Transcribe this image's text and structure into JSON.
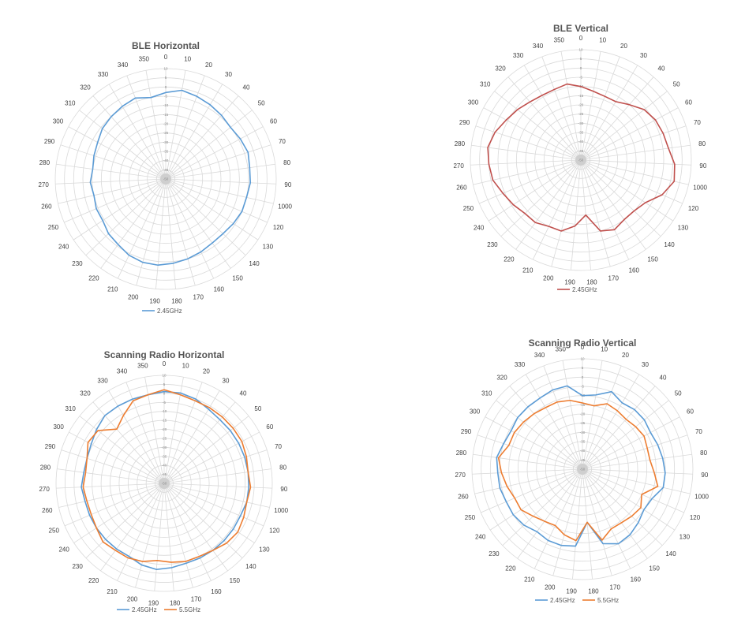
{
  "chart_data": [
    {
      "type": "radar",
      "title": "BLE Horizontal",
      "angle_labels": [
        "0",
        "10",
        "20",
        "30",
        "40",
        "50",
        "60",
        "70",
        "80",
        "90",
        "1000",
        "120",
        "130",
        "140",
        "150",
        "160",
        "170",
        "180",
        "190",
        "200",
        "210",
        "220",
        "230",
        "240",
        "250",
        "260",
        "270",
        "280",
        "290",
        "300",
        "310",
        "320",
        "330",
        "340",
        "350"
      ],
      "radial_labels": [
        "10",
        "5",
        "0",
        "-5",
        "-10",
        "-15",
        "-20",
        "-25",
        "-30",
        "-35",
        "-40",
        "-45",
        "-50"
      ],
      "rlim": [
        -50,
        10
      ],
      "grid": true,
      "legend_position": "bottom",
      "series": [
        {
          "name": "2.45GHz",
          "color": "#5b9bd5",
          "values": [
            -3,
            -1,
            -2,
            -3,
            -4,
            -5,
            -4,
            -3,
            -4,
            -4,
            -5,
            -5,
            -6,
            -7,
            -7,
            -6,
            -5,
            -4,
            -3,
            -3,
            -4,
            -6,
            -7,
            -9,
            -9,
            -10,
            -9,
            -10,
            -9,
            -8,
            -6,
            -5,
            -4,
            -3,
            -5
          ]
        }
      ]
    },
    {
      "type": "radar",
      "title": "BLE Vertical",
      "angle_labels": [
        "0",
        "10",
        "20",
        "30",
        "40",
        "50",
        "60",
        "70",
        "80",
        "90",
        "1000",
        "120",
        "130",
        "140",
        "150",
        "160",
        "170",
        "180",
        "190",
        "200",
        "210",
        "220",
        "230",
        "240",
        "250",
        "260",
        "270",
        "280",
        "290",
        "300",
        "310",
        "320",
        "330",
        "340",
        "350"
      ],
      "radial_labels": [
        "10",
        "5",
        "0",
        "-5",
        "-10",
        "-15",
        "-20",
        "-25",
        "-30",
        "-35",
        "-40",
        "-45",
        "-50"
      ],
      "rlim": [
        -50,
        10
      ],
      "grid": true,
      "legend_position": "bottom",
      "series": [
        {
          "name": "2.45GHz",
          "color": "#c0504d",
          "values": [
            -10,
            -12,
            -13,
            -13,
            -10,
            -6,
            -4,
            -3,
            -2,
            1,
            2,
            -2,
            -8,
            -10,
            -10,
            -8,
            -10,
            -20,
            -14,
            -10,
            -10,
            -8,
            -8,
            -6,
            -4,
            -1,
            0,
            1,
            -1,
            -4,
            -6,
            -8,
            -9,
            -9,
            -8
          ]
        }
      ]
    },
    {
      "type": "radar",
      "title": "Scanning Radio Horizontal",
      "angle_labels": [
        "0",
        "10",
        "20",
        "30",
        "40",
        "50",
        "60",
        "70",
        "80",
        "90",
        "1000",
        "120",
        "130",
        "140",
        "150",
        "160",
        "170",
        "180",
        "190",
        "200",
        "210",
        "220",
        "230",
        "240",
        "250",
        "260",
        "270",
        "280",
        "290",
        "300",
        "310",
        "320",
        "330",
        "340",
        "350"
      ],
      "radial_labels": [
        "10",
        "5",
        "0",
        "-5",
        "-10",
        "-15",
        "-20",
        "-25",
        "-30",
        "-35",
        "-40",
        "-45",
        "-50"
      ],
      "rlim": [
        -50,
        10
      ],
      "grid": true,
      "legend_position": "bottom",
      "series": [
        {
          "name": "2.45GHz",
          "color": "#5b9bd5",
          "values": [
            1,
            1,
            0,
            -2,
            -3,
            -3,
            -3,
            -3,
            -3,
            -3,
            -3,
            -4,
            -4,
            -4,
            -4,
            -4,
            -4,
            -3,
            -2,
            -3,
            -5,
            -5,
            -5,
            -5,
            -5,
            -5,
            -4,
            -5,
            -5,
            -4,
            -2,
            0,
            0,
            0,
            0
          ]
        },
        {
          "name": "5.5GHz",
          "color": "#ed7d31",
          "values": [
            2,
            0,
            -1,
            -1,
            -1,
            -1,
            -1,
            -2,
            -3,
            -2,
            -3,
            -2,
            -1,
            -2,
            -4,
            -5,
            -5,
            -6,
            -7,
            -5,
            -4,
            -4,
            -3,
            -5,
            -6,
            -6,
            -5,
            -6,
            -5,
            -2,
            -3,
            -10,
            -6,
            -1,
            0
          ]
        }
      ]
    },
    {
      "type": "radar",
      "title": "Scanning Radio Vertical",
      "angle_labels": [
        "0",
        "10",
        "20",
        "30",
        "40",
        "50",
        "60",
        "70",
        "80",
        "90",
        "1000",
        "120",
        "130",
        "140",
        "150",
        "160",
        "170",
        "180",
        "190",
        "200",
        "210",
        "220",
        "230",
        "240",
        "250",
        "260",
        "270",
        "280",
        "290",
        "300",
        "310",
        "320",
        "330",
        "340",
        "350"
      ],
      "radial_labels": [
        "10",
        "5",
        "0",
        "-5",
        "-10",
        "-15",
        "-20",
        "-25",
        "-30",
        "-35",
        "-40",
        "-45",
        "-50"
      ],
      "rlim": [
        -50,
        10
      ],
      "grid": true,
      "legend_position": "bottom",
      "series": [
        {
          "name": "2.45GHz",
          "color": "#5b9bd5",
          "values": [
            -10,
            -9,
            -5,
            -8,
            -7,
            -7,
            -8,
            -7,
            -6,
            -5,
            -5,
            -9,
            -10,
            -8,
            -6,
            -5,
            -8,
            -21,
            -8,
            -7,
            -7,
            -8,
            -6,
            -5,
            -5,
            -4,
            -4,
            -3,
            -5,
            -6,
            -5,
            -5,
            -5,
            -4,
            -4
          ]
        },
        {
          "name": "5.5GHz",
          "color": "#ed7d31",
          "values": [
            -14,
            -15,
            -12,
            -13,
            -14,
            -13,
            -12,
            -13,
            -13,
            -11,
            -8,
            -15,
            -12,
            -13,
            -14,
            -14,
            -10,
            -21,
            -11,
            -13,
            -16,
            -15,
            -13,
            -10,
            -10,
            -8,
            -6,
            -4,
            -8,
            -8,
            -9,
            -10,
            -11,
            -11,
            -12
          ]
        }
      ]
    }
  ]
}
